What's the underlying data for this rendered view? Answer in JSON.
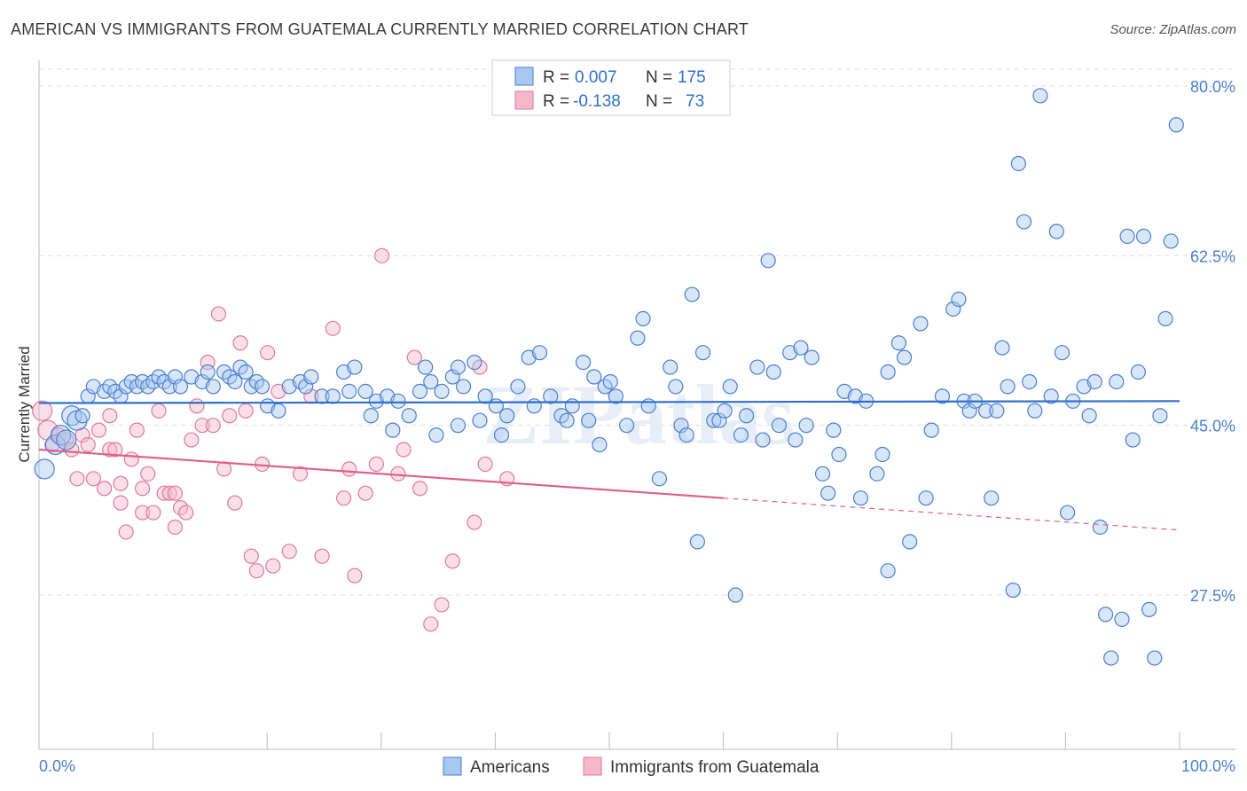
{
  "title": "AMERICAN VS IMMIGRANTS FROM GUATEMALA CURRENTLY MARRIED CORRELATION CHART",
  "source": "Source: ZipAtlas.com",
  "watermark": "ZIPatlas",
  "colors": {
    "americans_fill": "#a9c8f0",
    "americans_stroke": "#4a7fd0",
    "americans_line": "#2f6fd0",
    "guatemala_fill": "#f5b8cb",
    "guatemala_stroke": "#e07a9c",
    "guatemala_line": "#e0608a",
    "tick_label": "#4a7fd0",
    "grid": "#dddddd"
  },
  "legend": {
    "rows": [
      {
        "r_label": "R =",
        "r_value": "0.007",
        "n_label": "N =",
        "n_value": "175",
        "series": "Americans"
      },
      {
        "r_label": "R =",
        "r_value": "-0.138",
        "n_label": "N =",
        "n_value": "73",
        "series": "Immigrants from Guatemala"
      }
    ]
  },
  "chart_data": {
    "type": "scatter",
    "title": "AMERICAN VS IMMIGRANTS FROM GUATEMALA CURRENTLY MARRIED CORRELATION CHART",
    "xlabel": "",
    "ylabel": "Currently Married",
    "xlim": [
      0,
      100
    ],
    "ylim": [
      12,
      82
    ],
    "x_tick_labels": [
      {
        "value": 0,
        "label": "0.0%"
      },
      {
        "value": 100,
        "label": "100.0%"
      }
    ],
    "y_tick_labels": [
      {
        "value": 80,
        "label": "80.0%"
      },
      {
        "value": 62.5,
        "label": "62.5%"
      },
      {
        "value": 45,
        "label": "45.0%"
      },
      {
        "value": 27.5,
        "label": "27.5%"
      }
    ],
    "grid": true,
    "legend_position": "top-center",
    "series": [
      {
        "name": "Americans",
        "color": "#4a7fd0",
        "trend": {
          "x": [
            0,
            100
          ],
          "y": [
            47.3,
            47.5
          ]
        },
        "points": [
          [
            0.5,
            40.5
          ],
          [
            1.5,
            43
          ],
          [
            2,
            44
          ],
          [
            2.5,
            43.5
          ],
          [
            3,
            46
          ],
          [
            3.5,
            45.5
          ],
          [
            4,
            46
          ],
          [
            4.5,
            48
          ],
          [
            5,
            49
          ],
          [
            6,
            48.5
          ],
          [
            6.5,
            49
          ],
          [
            7,
            48.5
          ],
          [
            7.5,
            48
          ],
          [
            8,
            49
          ],
          [
            8.5,
            49.5
          ],
          [
            9,
            49
          ],
          [
            9.5,
            49.5
          ],
          [
            10,
            49
          ],
          [
            10.5,
            49.5
          ],
          [
            11,
            50
          ],
          [
            11.5,
            49.5
          ],
          [
            12,
            49
          ],
          [
            12.5,
            50
          ],
          [
            13,
            49
          ],
          [
            14,
            50
          ],
          [
            15,
            49.5
          ],
          [
            15.5,
            50.5
          ],
          [
            16,
            49
          ],
          [
            17,
            50.5
          ],
          [
            17.5,
            50
          ],
          [
            18,
            49.5
          ],
          [
            18.5,
            51
          ],
          [
            19,
            50.5
          ],
          [
            19.5,
            49
          ],
          [
            20,
            49.5
          ],
          [
            20.5,
            49
          ],
          [
            21,
            47
          ],
          [
            22,
            46.5
          ],
          [
            23,
            49
          ],
          [
            24,
            49.5
          ],
          [
            24.5,
            49
          ],
          [
            25,
            50
          ],
          [
            26,
            48
          ],
          [
            27,
            48
          ],
          [
            28,
            50.5
          ],
          [
            28.5,
            48.5
          ],
          [
            29,
            51
          ],
          [
            30,
            48.5
          ],
          [
            30.5,
            46
          ],
          [
            31,
            47.5
          ],
          [
            32,
            48
          ],
          [
            32.5,
            44.5
          ],
          [
            33,
            47.5
          ],
          [
            34,
            46
          ],
          [
            35,
            48.5
          ],
          [
            35.5,
            51
          ],
          [
            36,
            49.5
          ],
          [
            36.5,
            44
          ],
          [
            37,
            48.5
          ],
          [
            38,
            50
          ],
          [
            38.5,
            51
          ],
          [
            38.5,
            45
          ],
          [
            39,
            49
          ],
          [
            40,
            51.5
          ],
          [
            40.5,
            45.5
          ],
          [
            41,
            48
          ],
          [
            42,
            47
          ],
          [
            42.5,
            44
          ],
          [
            43,
            46
          ],
          [
            44,
            49
          ],
          [
            45,
            52
          ],
          [
            45.5,
            47
          ],
          [
            46,
            52.5
          ],
          [
            47,
            48
          ],
          [
            48,
            46
          ],
          [
            48.5,
            45.5
          ],
          [
            49,
            47
          ],
          [
            50,
            51.5
          ],
          [
            50.5,
            45.5
          ],
          [
            51,
            50
          ],
          [
            51.5,
            43
          ],
          [
            52,
            49
          ],
          [
            52.5,
            49.5
          ],
          [
            53,
            48
          ],
          [
            54,
            45
          ],
          [
            55,
            54
          ],
          [
            55.5,
            56
          ],
          [
            56,
            47
          ],
          [
            57,
            39.5
          ],
          [
            58,
            51
          ],
          [
            58.5,
            49
          ],
          [
            59,
            45
          ],
          [
            59.5,
            44
          ],
          [
            60,
            58.5
          ],
          [
            60.5,
            33
          ],
          [
            61,
            52.5
          ],
          [
            62,
            45.5
          ],
          [
            62.5,
            45.5
          ],
          [
            63,
            46.5
          ],
          [
            63.5,
            49
          ],
          [
            64,
            27.5
          ],
          [
            64.5,
            44
          ],
          [
            65,
            46
          ],
          [
            66,
            51
          ],
          [
            66.5,
            43.5
          ],
          [
            67,
            62
          ],
          [
            67.5,
            50.5
          ],
          [
            68,
            45
          ],
          [
            69,
            52.5
          ],
          [
            69.5,
            43.5
          ],
          [
            70,
            53
          ],
          [
            70.5,
            45
          ],
          [
            71,
            52
          ],
          [
            72,
            40
          ],
          [
            72.5,
            38
          ],
          [
            73,
            44.5
          ],
          [
            73.5,
            42
          ],
          [
            74,
            48.5
          ],
          [
            75,
            48
          ],
          [
            75.5,
            37.5
          ],
          [
            76,
            47.5
          ],
          [
            77,
            40
          ],
          [
            77.5,
            42
          ],
          [
            78,
            30
          ],
          [
            78,
            50.5
          ],
          [
            79,
            53.5
          ],
          [
            79.5,
            52
          ],
          [
            80,
            33
          ],
          [
            81,
            55.5
          ],
          [
            81.5,
            37.5
          ],
          [
            82,
            44.5
          ],
          [
            83,
            48
          ],
          [
            84,
            57
          ],
          [
            84.5,
            58
          ],
          [
            85,
            47.5
          ],
          [
            85.5,
            46.5
          ],
          [
            86,
            47.5
          ],
          [
            87,
            46.5
          ],
          [
            87.5,
            37.5
          ],
          [
            88,
            46.5
          ],
          [
            88.5,
            53
          ],
          [
            89,
            49
          ],
          [
            89.5,
            28
          ],
          [
            90,
            72
          ],
          [
            90.5,
            66
          ],
          [
            91,
            49.5
          ],
          [
            91.5,
            46.5
          ],
          [
            92,
            79
          ],
          [
            93,
            48
          ],
          [
            93.5,
            65
          ],
          [
            94,
            52.5
          ],
          [
            94.5,
            36
          ],
          [
            95,
            47.5
          ],
          [
            96,
            49
          ],
          [
            96.5,
            46
          ],
          [
            97,
            49.5
          ],
          [
            97.5,
            34.5
          ],
          [
            98,
            25.5
          ],
          [
            98.5,
            21
          ],
          [
            99,
            49.5
          ],
          [
            99.5,
            25
          ],
          [
            100,
            64.5
          ],
          [
            100.5,
            43.5
          ],
          [
            101,
            50.5
          ],
          [
            101.5,
            64.5
          ],
          [
            102,
            26
          ],
          [
            102.5,
            21
          ],
          [
            103,
            46
          ],
          [
            103.5,
            56
          ],
          [
            104,
            64
          ],
          [
            104.5,
            76
          ]
        ]
      },
      {
        "name": "Immigrants from Guatemala",
        "color": "#e07a9c",
        "trend": {
          "x": [
            0,
            60
          ],
          "y": [
            42.5,
            37.5
          ],
          "dashed_to": [
            100,
            34.2
          ]
        },
        "points": [
          [
            0.3,
            46.5
          ],
          [
            0.8,
            44.5
          ],
          [
            1.2,
            43
          ],
          [
            1.8,
            44
          ],
          [
            2.5,
            43.5
          ],
          [
            3,
            42.5
          ],
          [
            3.5,
            39.5
          ],
          [
            4,
            44
          ],
          [
            4.5,
            43
          ],
          [
            5,
            39.5
          ],
          [
            5.5,
            44.5
          ],
          [
            6,
            38.5
          ],
          [
            6.5,
            46
          ],
          [
            6.5,
            42.5
          ],
          [
            7,
            42.5
          ],
          [
            7.5,
            39
          ],
          [
            7.5,
            37
          ],
          [
            8,
            34
          ],
          [
            8.5,
            41.5
          ],
          [
            9,
            44.5
          ],
          [
            9.5,
            38.5
          ],
          [
            9.5,
            36
          ],
          [
            10,
            40
          ],
          [
            10.5,
            36
          ],
          [
            11,
            46.5
          ],
          [
            11.5,
            38
          ],
          [
            12,
            38
          ],
          [
            12.5,
            34.5
          ],
          [
            12.5,
            38
          ],
          [
            13,
            36.5
          ],
          [
            13.5,
            36
          ],
          [
            14,
            43.5
          ],
          [
            14.5,
            47
          ],
          [
            15,
            45
          ],
          [
            15.5,
            51.5
          ],
          [
            16,
            45
          ],
          [
            16.5,
            56.5
          ],
          [
            17,
            40.5
          ],
          [
            17.5,
            46
          ],
          [
            18,
            37
          ],
          [
            18.5,
            53.5
          ],
          [
            19,
            46.5
          ],
          [
            19.5,
            31.5
          ],
          [
            20,
            30
          ],
          [
            20.5,
            41
          ],
          [
            21,
            52.5
          ],
          [
            21.5,
            30.5
          ],
          [
            22,
            48.5
          ],
          [
            23,
            32
          ],
          [
            24,
            40
          ],
          [
            25,
            48
          ],
          [
            26,
            31.5
          ],
          [
            27,
            55
          ],
          [
            28,
            37.5
          ],
          [
            28.5,
            40.5
          ],
          [
            29,
            29.5
          ],
          [
            30,
            38
          ],
          [
            31,
            41
          ],
          [
            31.5,
            62.5
          ],
          [
            33,
            40
          ],
          [
            33.5,
            42.5
          ],
          [
            34.5,
            52
          ],
          [
            35,
            38.5
          ],
          [
            36,
            24.5
          ],
          [
            37,
            26.5
          ],
          [
            38,
            31
          ],
          [
            40,
            35
          ],
          [
            40.5,
            51
          ],
          [
            41,
            41
          ],
          [
            43,
            39.5
          ]
        ]
      }
    ]
  }
}
